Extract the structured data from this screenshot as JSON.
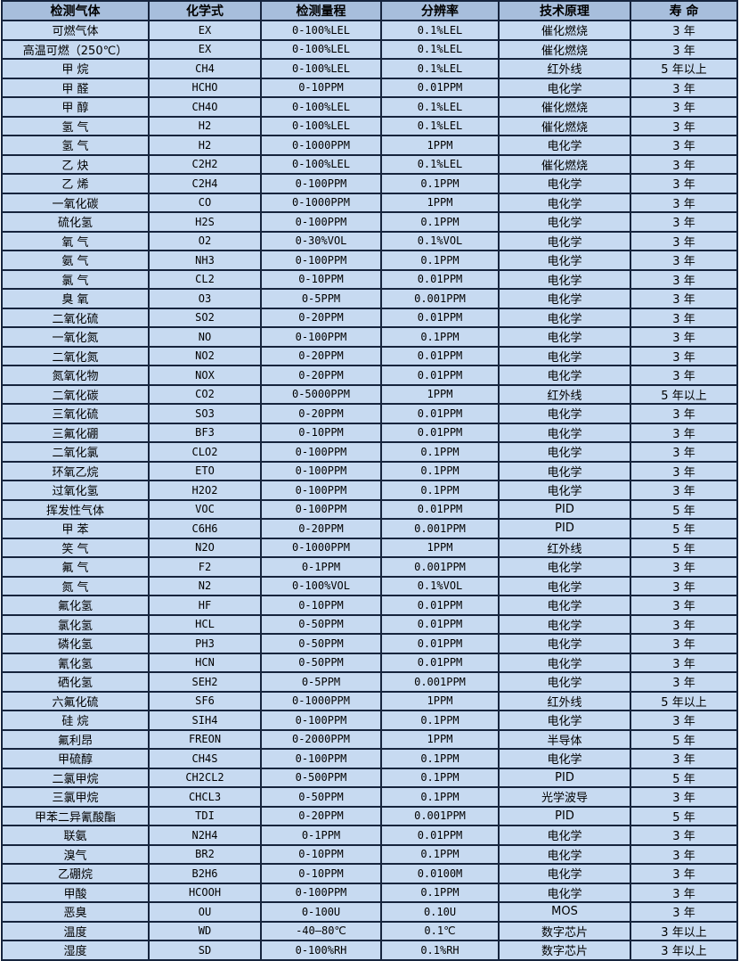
{
  "colors": {
    "header_bg": "#a7bedc",
    "row_bg": "#c7daf1",
    "border": "#16243d",
    "text": "#000000"
  },
  "table": {
    "columns": [
      "检测气体",
      "化学式",
      "检测量程",
      "分辨率",
      "技术原理",
      "寿 命"
    ],
    "rows": [
      [
        "可燃气体",
        "EX",
        "0-100%LEL",
        "0.1%LEL",
        "催化燃烧",
        "3 年"
      ],
      [
        "高温可燃（250℃）",
        "EX",
        "0-100%LEL",
        "0.1%LEL",
        "催化燃烧",
        "3 年"
      ],
      [
        "甲 烷",
        "CH4",
        "0-100%LEL",
        "0.1%LEL",
        "红外线",
        "5 年以上"
      ],
      [
        "甲 醛",
        "HCHO",
        "0-10PPM",
        "0.01PPM",
        "电化学",
        "3 年"
      ],
      [
        "甲 醇",
        "CH4O",
        "0-100%LEL",
        "0.1%LEL",
        "催化燃烧",
        "3 年"
      ],
      [
        "氢 气",
        "H2",
        "0-100%LEL",
        "0.1%LEL",
        "催化燃烧",
        "3 年"
      ],
      [
        "氢 气",
        "H2",
        "0-1000PPM",
        "1PPM",
        "电化学",
        "3 年"
      ],
      [
        "乙 炔",
        "C2H2",
        "0-100%LEL",
        "0.1%LEL",
        "催化燃烧",
        "3 年"
      ],
      [
        "乙 烯",
        "C2H4",
        "0-100PPM",
        "0.1PPM",
        "电化学",
        "3 年"
      ],
      [
        "一氧化碳",
        "CO",
        "0-1000PPM",
        "1PPM",
        "电化学",
        "3 年"
      ],
      [
        "硫化氢",
        "H2S",
        "0-100PPM",
        "0.1PPM",
        "电化学",
        "3 年"
      ],
      [
        "氧 气",
        "O2",
        "0-30%VOL",
        "0.1%VOL",
        "电化学",
        "3 年"
      ],
      [
        "氨 气",
        "NH3",
        "0-100PPM",
        "0.1PPM",
        "电化学",
        "3 年"
      ],
      [
        "氯 气",
        "CL2",
        "0-10PPM",
        "0.01PPM",
        "电化学",
        "3 年"
      ],
      [
        "臭 氧",
        "O3",
        "0-5PPM",
        "0.001PPM",
        "电化学",
        "3 年"
      ],
      [
        "二氧化硫",
        "SO2",
        "0-20PPM",
        "0.01PPM",
        "电化学",
        "3 年"
      ],
      [
        "一氧化氮",
        "NO",
        "0-100PPM",
        "0.1PPM",
        "电化学",
        "3 年"
      ],
      [
        "二氧化氮",
        "NO2",
        "0-20PPM",
        "0.01PPM",
        "电化学",
        "3 年"
      ],
      [
        "氮氧化物",
        "NOX",
        "0-20PPM",
        "0.01PPM",
        "电化学",
        "3 年"
      ],
      [
        "二氧化碳",
        "CO2",
        "0-5000PPM",
        "1PPM",
        "红外线",
        "5 年以上"
      ],
      [
        "三氧化硫",
        "SO3",
        "0-20PPM",
        "0.01PPM",
        "电化学",
        "3 年"
      ],
      [
        "三氟化硼",
        "BF3",
        "0-10PPM",
        "0.01PPM",
        "电化学",
        "3 年"
      ],
      [
        "二氧化氯",
        "CLO2",
        "0-100PPM",
        "0.1PPM",
        "电化学",
        "3 年"
      ],
      [
        "环氧乙烷",
        "ETO",
        "0-100PPM",
        "0.1PPM",
        "电化学",
        "3 年"
      ],
      [
        "过氧化氢",
        "H2O2",
        "0-100PPM",
        "0.1PPM",
        "电化学",
        "3 年"
      ],
      [
        "挥发性气体",
        "VOC",
        "0-100PPM",
        "0.01PPM",
        "PID",
        "5 年"
      ],
      [
        "甲 苯",
        "C6H6",
        "0-20PPM",
        "0.001PPM",
        "PID",
        "5 年"
      ],
      [
        "笑 气",
        "N2O",
        "0-1000PPM",
        "1PPM",
        "红外线",
        "5 年"
      ],
      [
        "氟 气",
        "F2",
        "0-1PPM",
        "0.001PPM",
        "电化学",
        "3 年"
      ],
      [
        "氮 气",
        "N2",
        "0-100%VOL",
        "0.1%VOL",
        "电化学",
        "3 年"
      ],
      [
        "氟化氢",
        "HF",
        "0-10PPM",
        "0.01PPM",
        "电化学",
        "3 年"
      ],
      [
        "氯化氢",
        "HCL",
        "0-50PPM",
        "0.01PPM",
        "电化学",
        "3 年"
      ],
      [
        "磷化氢",
        "PH3",
        "0-50PPM",
        "0.01PPM",
        "电化学",
        "3 年"
      ],
      [
        "氰化氢",
        "HCN",
        "0-50PPM",
        "0.01PPM",
        "电化学",
        "3 年"
      ],
      [
        "硒化氢",
        "SEH2",
        "0-5PPM",
        "0.001PPM",
        "电化学",
        "3 年"
      ],
      [
        "六氟化硫",
        "SF6",
        "0-1000PPM",
        "1PPM",
        "红外线",
        "5 年以上"
      ],
      [
        "硅 烷",
        "SIH4",
        "0-100PPM",
        "0.1PPM",
        "电化学",
        "3 年"
      ],
      [
        "氟利昂",
        "FREON",
        "0-2000PPM",
        "1PPM",
        "半导体",
        "5 年"
      ],
      [
        "甲硫醇",
        "CH4S",
        "0-100PPM",
        "0.1PPM",
        "电化学",
        "3 年"
      ],
      [
        "二氯甲烷",
        "CH2CL2",
        "0-500PPM",
        "0.1PPM",
        "PID",
        "5 年"
      ],
      [
        "三氯甲烷",
        "CHCL3",
        "0-50PPM",
        "0.1PPM",
        "光学波导",
        "3 年"
      ],
      [
        "甲苯二异氰酸酯",
        "TDI",
        "0-20PPM",
        "0.001PPM",
        "PID",
        "5 年"
      ],
      [
        "联氨",
        "N2H4",
        "0-1PPM",
        "0.01PPM",
        "电化学",
        "3 年"
      ],
      [
        "溴气",
        "BR2",
        "0-10PPM",
        "0.1PPM",
        "电化学",
        "3 年"
      ],
      [
        "乙硼烷",
        "B2H6",
        "0-10PPM",
        "0.0100M",
        "电化学",
        "3 年"
      ],
      [
        "甲酸",
        "HCOOH",
        "0-100PPM",
        "0.1PPM",
        "电化学",
        "3 年"
      ],
      [
        "恶臭",
        "OU",
        "0-100U",
        "0.10U",
        "MOS",
        "3 年"
      ],
      [
        "温度",
        "WD",
        "-40—80℃",
        "0.1℃",
        "数字芯片",
        "3 年以上"
      ],
      [
        "湿度",
        "SD",
        "0-100%RH",
        "0.1%RH",
        "数字芯片",
        "3 年以上"
      ]
    ]
  }
}
